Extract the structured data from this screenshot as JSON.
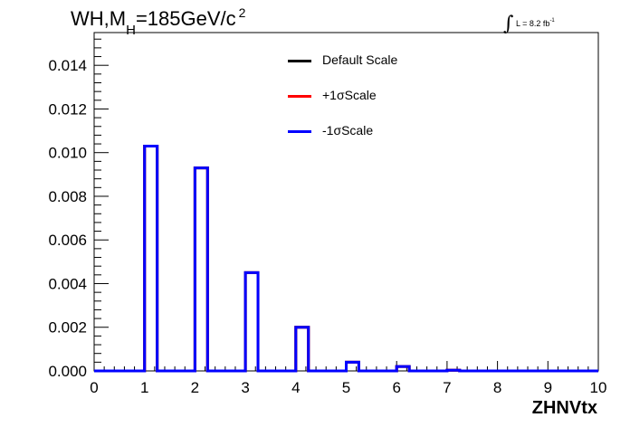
{
  "title": {
    "prefix": "WH,M",
    "subscript": "H",
    "suffix": "=185GeV/c",
    "superscript": "2"
  },
  "luminosity": {
    "integral_symbol": "∫",
    "text": "L = 8.2 fb",
    "superscript": "-1"
  },
  "legend": [
    {
      "label": "Default Scale",
      "color": "#000000"
    },
    {
      "label": "+1σScale",
      "color": "#ff0000"
    },
    {
      "label": "-1σScale",
      "color": "#0000ff"
    }
  ],
  "chart_data": {
    "type": "bar",
    "style": "step-histogram",
    "xlabel": "ZHNVtx",
    "ylabel": "",
    "xlim": [
      0,
      10
    ],
    "ylim": [
      0,
      0.0155
    ],
    "xticks": [
      "0",
      "1",
      "2",
      "3",
      "4",
      "5",
      "6",
      "7",
      "8",
      "9",
      "10"
    ],
    "yticks": [
      "0.000",
      "0.002",
      "0.004",
      "0.006",
      "0.008",
      "0.010",
      "0.012",
      "0.014"
    ],
    "ytick_values": [
      0,
      0.002,
      0.004,
      0.006,
      0.008,
      0.01,
      0.012,
      0.014
    ],
    "bin_width": 0.25,
    "bins_start": [
      1,
      2,
      3,
      4,
      5,
      6,
      7
    ],
    "series": [
      {
        "name": "Default Scale",
        "color": "#000000",
        "values": [
          0.0103,
          0.0093,
          0.0045,
          0.002,
          0.0004,
          0.0002,
          3e-05
        ]
      },
      {
        "name": "+1σScale",
        "color": "#ff0000",
        "values": [
          0.0103,
          0.0093,
          0.0045,
          0.002,
          0.0004,
          0.0002,
          3e-05
        ]
      },
      {
        "name": "-1σScale",
        "color": "#0000ff",
        "values": [
          0.0103,
          0.0093,
          0.0045,
          0.002,
          0.0004,
          0.0002,
          3e-05
        ]
      }
    ]
  }
}
